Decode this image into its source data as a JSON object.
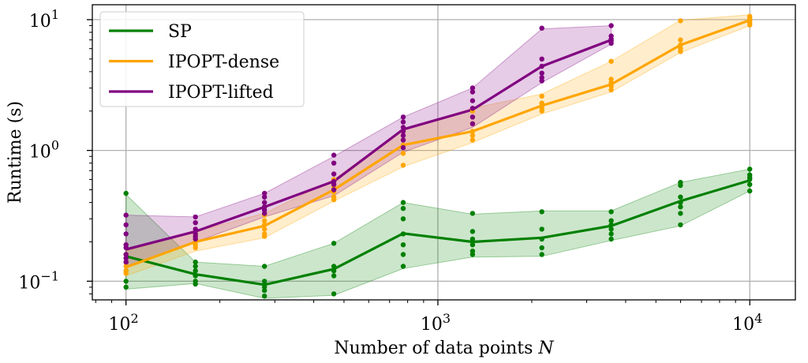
{
  "chart_data": {
    "type": "line",
    "xscale": "log",
    "yscale": "log",
    "xlim": [
      78,
      14000
    ],
    "ylim": [
      0.072,
      13
    ],
    "xlabel": "Number of data points N",
    "ylabel": "Runtime (s)",
    "grid": true,
    "legend_position": "top-left",
    "x_ticks": [
      {
        "value": 100,
        "base": "10",
        "exp": "2"
      },
      {
        "value": 1000,
        "base": "10",
        "exp": "3"
      },
      {
        "value": 10000,
        "base": "10",
        "exp": "4"
      }
    ],
    "y_ticks": [
      {
        "value": 0.1,
        "base": "10",
        "exp": "−1"
      },
      {
        "value": 1,
        "base": "10",
        "exp": "0"
      },
      {
        "value": 10,
        "base": "10",
        "exp": "1"
      }
    ],
    "series": [
      {
        "name": "SP",
        "color": "#008000",
        "band_alpha": 0.2,
        "x": [
          100,
          167,
          278,
          464,
          774,
          1292,
          2154,
          3594,
          5995,
          10000
        ],
        "mean": [
          0.155,
          0.113,
          0.094,
          0.124,
          0.232,
          0.2,
          0.215,
          0.265,
          0.41,
          0.59
        ],
        "upper": [
          0.46,
          0.14,
          0.13,
          0.195,
          0.4,
          0.325,
          0.345,
          0.345,
          0.57,
          0.72
        ],
        "lower": [
          0.087,
          0.096,
          0.074,
          0.078,
          0.125,
          0.153,
          0.155,
          0.205,
          0.265,
          0.49
        ],
        "points": [
          [
            100,
            0.47
          ],
          [
            100,
            0.16
          ],
          [
            100,
            0.14
          ],
          [
            100,
            0.12
          ],
          [
            100,
            0.1
          ],
          [
            100,
            0.09
          ],
          [
            167,
            0.14
          ],
          [
            167,
            0.13
          ],
          [
            167,
            0.12
          ],
          [
            167,
            0.11
          ],
          [
            167,
            0.1
          ],
          [
            167,
            0.095
          ],
          [
            278,
            0.13
          ],
          [
            278,
            0.1
          ],
          [
            278,
            0.095
          ],
          [
            278,
            0.09
          ],
          [
            278,
            0.085
          ],
          [
            278,
            0.077
          ],
          [
            464,
            0.195
          ],
          [
            464,
            0.13
          ],
          [
            464,
            0.12
          ],
          [
            464,
            0.11
          ],
          [
            464,
            0.08
          ],
          [
            774,
            0.4
          ],
          [
            774,
            0.36
          ],
          [
            774,
            0.3
          ],
          [
            774,
            0.23
          ],
          [
            774,
            0.19
          ],
          [
            774,
            0.16
          ],
          [
            774,
            0.13
          ],
          [
            1292,
            0.33
          ],
          [
            1292,
            0.24
          ],
          [
            1292,
            0.21
          ],
          [
            1292,
            0.19
          ],
          [
            1292,
            0.17
          ],
          [
            1292,
            0.16
          ],
          [
            2154,
            0.34
          ],
          [
            2154,
            0.25
          ],
          [
            2154,
            0.21
          ],
          [
            2154,
            0.18
          ],
          [
            2154,
            0.16
          ],
          [
            3594,
            0.34
          ],
          [
            3594,
            0.29
          ],
          [
            3594,
            0.27
          ],
          [
            3594,
            0.25
          ],
          [
            3594,
            0.23
          ],
          [
            3594,
            0.21
          ],
          [
            5995,
            0.57
          ],
          [
            5995,
            0.54
          ],
          [
            5995,
            0.44
          ],
          [
            5995,
            0.4
          ],
          [
            5995,
            0.37
          ],
          [
            5995,
            0.33
          ],
          [
            5995,
            0.27
          ],
          [
            10000,
            0.72
          ],
          [
            10000,
            0.65
          ],
          [
            10000,
            0.62
          ],
          [
            10000,
            0.6
          ],
          [
            10000,
            0.55
          ],
          [
            10000,
            0.49
          ]
        ]
      },
      {
        "name": "IPOPT-dense",
        "color": "#FFA500",
        "band_alpha": 0.2,
        "x": [
          100,
          167,
          278,
          464,
          774,
          1292,
          2154,
          3594,
          5995,
          10000
        ],
        "mean": [
          0.128,
          0.2,
          0.265,
          0.5,
          1.1,
          1.4,
          2.2,
          3.2,
          6.4,
          9.9
        ],
        "upper": [
          0.17,
          0.24,
          0.33,
          0.6,
          1.45,
          2.1,
          2.7,
          4.8,
          9.9,
          10.9
        ],
        "lower": [
          0.11,
          0.17,
          0.215,
          0.41,
          0.75,
          1.15,
          1.9,
          2.8,
          5.6,
          9.0
        ],
        "points": [
          [
            100,
            0.16
          ],
          [
            100,
            0.14
          ],
          [
            100,
            0.13
          ],
          [
            100,
            0.12
          ],
          [
            100,
            0.115
          ],
          [
            167,
            0.23
          ],
          [
            167,
            0.21
          ],
          [
            167,
            0.2
          ],
          [
            167,
            0.19
          ],
          [
            167,
            0.18
          ],
          [
            278,
            0.32
          ],
          [
            278,
            0.29
          ],
          [
            278,
            0.27
          ],
          [
            278,
            0.25
          ],
          [
            278,
            0.23
          ],
          [
            278,
            0.22
          ],
          [
            464,
            0.6
          ],
          [
            464,
            0.52
          ],
          [
            464,
            0.48
          ],
          [
            464,
            0.44
          ],
          [
            464,
            0.42
          ],
          [
            774,
            1.4
          ],
          [
            774,
            1.2
          ],
          [
            774,
            1.1
          ],
          [
            774,
            0.95
          ],
          [
            774,
            0.77
          ],
          [
            1292,
            2.0
          ],
          [
            1292,
            1.6
          ],
          [
            1292,
            1.4
          ],
          [
            1292,
            1.3
          ],
          [
            1292,
            1.2
          ],
          [
            2154,
            2.6
          ],
          [
            2154,
            2.3
          ],
          [
            2154,
            2.2
          ],
          [
            2154,
            2.1
          ],
          [
            2154,
            2.0
          ],
          [
            3594,
            4.8
          ],
          [
            3594,
            3.5
          ],
          [
            3594,
            3.3
          ],
          [
            3594,
            3.1
          ],
          [
            3594,
            2.9
          ],
          [
            5995,
            9.8
          ],
          [
            5995,
            7.0
          ],
          [
            5995,
            6.4
          ],
          [
            5995,
            6.0
          ],
          [
            5995,
            5.7
          ],
          [
            10000,
            10.6
          ],
          [
            10000,
            10.2
          ],
          [
            10000,
            9.9
          ],
          [
            10000,
            9.5
          ],
          [
            10000,
            9.1
          ]
        ]
      },
      {
        "name": "IPOPT-lifted",
        "color": "#800080",
        "band_alpha": 0.2,
        "x": [
          100,
          167,
          278,
          464,
          774,
          1292,
          2154,
          3594
        ],
        "mean": [
          0.175,
          0.24,
          0.37,
          0.58,
          1.45,
          2.05,
          4.4,
          7.0
        ],
        "upper": [
          0.32,
          0.31,
          0.47,
          0.9,
          1.8,
          3.0,
          8.5,
          9.0
        ],
        "lower": [
          0.13,
          0.2,
          0.31,
          0.45,
          0.97,
          1.5,
          3.3,
          6.5
        ],
        "points": [
          [
            100,
            0.32
          ],
          [
            100,
            0.27
          ],
          [
            100,
            0.23
          ],
          [
            100,
            0.19
          ],
          [
            100,
            0.18
          ],
          [
            100,
            0.16
          ],
          [
            100,
            0.15
          ],
          [
            100,
            0.14
          ],
          [
            167,
            0.31
          ],
          [
            167,
            0.28
          ],
          [
            167,
            0.25
          ],
          [
            167,
            0.23
          ],
          [
            167,
            0.22
          ],
          [
            167,
            0.21
          ],
          [
            278,
            0.47
          ],
          [
            278,
            0.44
          ],
          [
            278,
            0.4
          ],
          [
            278,
            0.37
          ],
          [
            278,
            0.35
          ],
          [
            278,
            0.33
          ],
          [
            464,
            0.92
          ],
          [
            464,
            0.8
          ],
          [
            464,
            0.66
          ],
          [
            464,
            0.58
          ],
          [
            464,
            0.55
          ],
          [
            464,
            0.5
          ],
          [
            774,
            1.8
          ],
          [
            774,
            1.65
          ],
          [
            774,
            1.5
          ],
          [
            774,
            1.4
          ],
          [
            774,
            1.3
          ],
          [
            774,
            1.2
          ],
          [
            774,
            1.05
          ],
          [
            1292,
            3.0
          ],
          [
            1292,
            2.8
          ],
          [
            1292,
            2.4
          ],
          [
            1292,
            2.1
          ],
          [
            1292,
            1.8
          ],
          [
            1292,
            1.6
          ],
          [
            2154,
            8.6
          ],
          [
            2154,
            5.0
          ],
          [
            2154,
            4.4
          ],
          [
            2154,
            3.9
          ],
          [
            2154,
            3.6
          ],
          [
            2154,
            3.4
          ],
          [
            3594,
            9.0
          ],
          [
            3594,
            7.5
          ],
          [
            3594,
            7.1
          ],
          [
            3594,
            6.9
          ],
          [
            3594,
            6.6
          ]
        ]
      }
    ]
  }
}
